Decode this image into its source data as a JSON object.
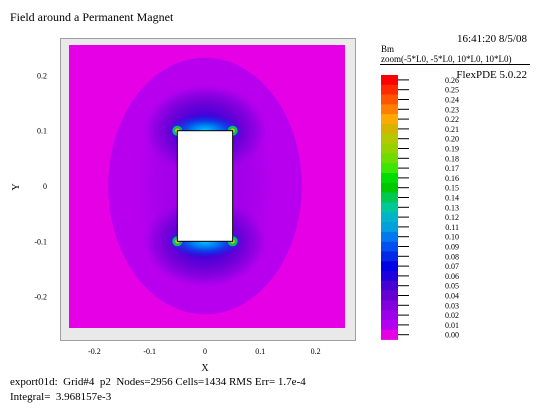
{
  "header": {
    "title": "Field around a Permanent Magnet",
    "timestamp": "16:41:20 8/5/08",
    "version": "FlexPDE 5.0.22"
  },
  "colorbar": {
    "variable": "Bm",
    "zoom": "zoom(-5*L0, -5*L0, 10*L0, 10*L0)"
  },
  "footer": {
    "line1": "export01d:  Grid#4  p2  Nodes=2956 Cells=1434 RMS Err= 1.7e-4",
    "line2": "Integral=  3.968157e-3"
  },
  "chart_data": {
    "type": "heatmap",
    "title": "Field around a Permanent Magnet",
    "xlabel": "X",
    "ylabel": "Y",
    "xlim": [
      -0.25,
      0.25
    ],
    "ylim": [
      -0.25,
      0.25
    ],
    "x_ticks": [
      -0.2,
      -0.1,
      0,
      0.1,
      0.2
    ],
    "x_tick_labels": [
      "-0.2",
      "-0.1",
      "0",
      "0.1",
      "0.2"
    ],
    "y_ticks": [
      0.2,
      0.1,
      0,
      -0.1,
      -0.2
    ],
    "y_tick_labels": [
      "0.2",
      "0.1",
      "0",
      "-0.1",
      "-0.2"
    ],
    "magnet": {
      "x": [
        -0.05,
        0.05
      ],
      "y": [
        -0.1,
        0.1
      ]
    },
    "levels": [
      0.26,
      0.25,
      0.24,
      0.23,
      0.22,
      0.21,
      0.2,
      0.19,
      0.18,
      0.17,
      0.16,
      0.15,
      0.14,
      0.13,
      0.12,
      0.11,
      0.1,
      0.09,
      0.08,
      0.07,
      0.06,
      0.05,
      0.04,
      0.03,
      0.02,
      0.01,
      0.0
    ],
    "level_labels": [
      "0.26",
      "0.25",
      "0.24",
      "0.23",
      "0.22",
      "0.21",
      "0.20",
      "0.19",
      "0.18",
      "0.17",
      "0.16",
      "0.15",
      "0.14",
      "0.13",
      "0.12",
      "0.11",
      "0.10",
      "0.09",
      "0.08",
      "0.07",
      "0.06",
      "0.05",
      "0.04",
      "0.03",
      "0.02",
      "0.01",
      "0.00"
    ],
    "level_colors": [
      "#ff0000",
      "#ff2a00",
      "#ff5500",
      "#ff8000",
      "#ffaa00",
      "#d4b400",
      "#b4c800",
      "#96d200",
      "#6edc00",
      "#3ce600",
      "#00dc00",
      "#00c800",
      "#00c850",
      "#00c896",
      "#00b4c8",
      "#00a0dc",
      "#0078f0",
      "#0050f0",
      "#0028e6",
      "#0000e6",
      "#1e00dc",
      "#4600d2",
      "#6400d2",
      "#8200dc",
      "#9b00e6",
      "#b400f0",
      "#e600e6"
    ],
    "grid": false
  }
}
